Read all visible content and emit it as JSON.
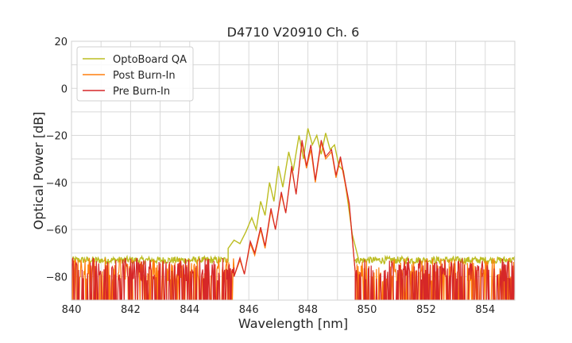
{
  "chart_data": {
    "type": "line",
    "title": "D4710 V20910 Ch. 6",
    "xlabel": "Wavelength [nm]",
    "ylabel": "Optical Power [dB]",
    "xlim": [
      840,
      855
    ],
    "ylim": [
      -90,
      20
    ],
    "xticks": [
      840,
      842,
      844,
      846,
      848,
      850,
      852,
      854
    ],
    "yticks": [
      -80,
      -60,
      -40,
      -20,
      0,
      20
    ],
    "tick_labels_x": [
      "840",
      "842",
      "844",
      "846",
      "848",
      "850",
      "852",
      "854"
    ],
    "tick_labels_y": [
      "−80",
      "−60",
      "−40",
      "−20",
      "0",
      "20"
    ],
    "grid": true,
    "legend_position": "top-left",
    "series": [
      {
        "name": "OptoBoard QA",
        "color": "#bcbd22",
        "noise_floor": -73,
        "noise_span": [
          840,
          845.3
        ],
        "noise_span_right": [
          849.6,
          855
        ],
        "points": [
          [
            845.3,
            -68
          ],
          [
            845.5,
            -64.5
          ],
          [
            845.7,
            -66
          ],
          [
            845.9,
            -61
          ],
          [
            846.1,
            -55
          ],
          [
            846.25,
            -60
          ],
          [
            846.4,
            -48
          ],
          [
            846.55,
            -54
          ],
          [
            846.7,
            -40
          ],
          [
            846.85,
            -48
          ],
          [
            847.0,
            -33
          ],
          [
            847.15,
            -42
          ],
          [
            847.35,
            -27
          ],
          [
            847.5,
            -35
          ],
          [
            847.7,
            -20
          ],
          [
            847.85,
            -30
          ],
          [
            848.0,
            -17
          ],
          [
            848.15,
            -24
          ],
          [
            848.3,
            -20
          ],
          [
            848.45,
            -28
          ],
          [
            848.6,
            -19
          ],
          [
            848.75,
            -26
          ],
          [
            848.9,
            -24
          ],
          [
            849.05,
            -33
          ],
          [
            849.2,
            -35
          ],
          [
            849.35,
            -48
          ],
          [
            849.5,
            -62
          ],
          [
            849.7,
            -72
          ]
        ]
      },
      {
        "name": "Post Burn-In",
        "color": "#ff7f0e",
        "noise_floor": -82,
        "noise_span": [
          840,
          845.5
        ],
        "noise_span_right": [
          849.6,
          855
        ],
        "points": [
          [
            845.5,
            -80
          ],
          [
            845.7,
            -73
          ],
          [
            845.85,
            -79
          ],
          [
            846.05,
            -66
          ],
          [
            846.2,
            -71
          ],
          [
            846.4,
            -60
          ],
          [
            846.55,
            -68
          ],
          [
            846.75,
            -52
          ],
          [
            846.9,
            -60
          ],
          [
            847.1,
            -45
          ],
          [
            847.25,
            -53
          ],
          [
            847.45,
            -34
          ],
          [
            847.6,
            -45
          ],
          [
            847.8,
            -23
          ],
          [
            847.95,
            -34
          ],
          [
            848.1,
            -26
          ],
          [
            848.25,
            -40
          ],
          [
            848.45,
            -23
          ],
          [
            848.6,
            -30
          ],
          [
            848.8,
            -27
          ],
          [
            848.95,
            -38
          ],
          [
            849.1,
            -30
          ],
          [
            849.25,
            -40
          ],
          [
            849.4,
            -50
          ],
          [
            849.6,
            -78
          ]
        ]
      },
      {
        "name": "Pre Burn-In",
        "color": "#d62728",
        "noise_floor": -82,
        "noise_span": [
          840,
          845.5
        ],
        "noise_span_right": [
          849.6,
          855
        ],
        "points": [
          [
            845.5,
            -80
          ],
          [
            845.7,
            -72
          ],
          [
            845.85,
            -79
          ],
          [
            846.05,
            -65
          ],
          [
            846.2,
            -70
          ],
          [
            846.4,
            -59
          ],
          [
            846.55,
            -67
          ],
          [
            846.75,
            -51
          ],
          [
            846.9,
            -60
          ],
          [
            847.1,
            -44
          ],
          [
            847.25,
            -53
          ],
          [
            847.45,
            -33
          ],
          [
            847.6,
            -45
          ],
          [
            847.8,
            -22
          ],
          [
            847.95,
            -33
          ],
          [
            848.1,
            -24
          ],
          [
            848.25,
            -39
          ],
          [
            848.45,
            -22
          ],
          [
            848.6,
            -29
          ],
          [
            848.8,
            -26
          ],
          [
            848.95,
            -37
          ],
          [
            849.1,
            -29
          ],
          [
            849.25,
            -39
          ],
          [
            849.4,
            -49
          ],
          [
            849.6,
            -78
          ]
        ]
      }
    ]
  }
}
